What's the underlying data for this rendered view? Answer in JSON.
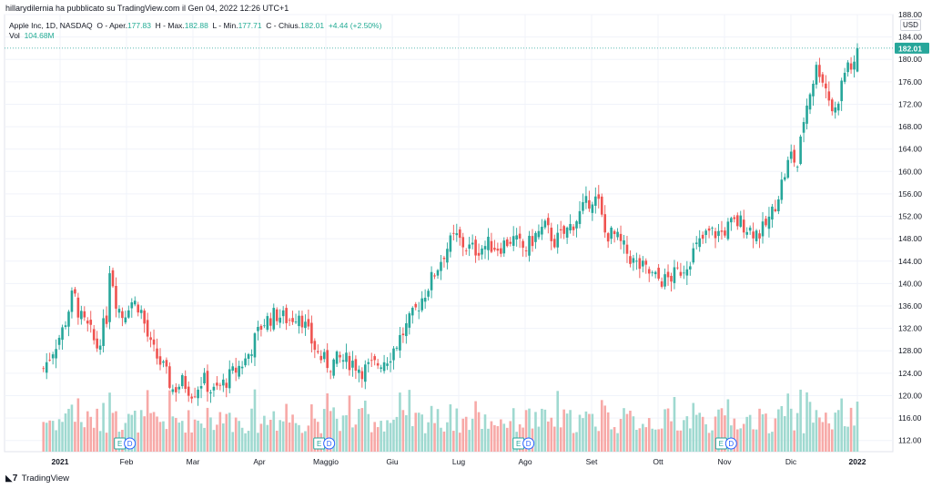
{
  "header": {
    "published_by": "hillarydilernia ha pubblicato su TradingView.com il Gen 04, 2022 12:26 UTC+1"
  },
  "legend": {
    "symbol": "Apple Inc, 1D, NASDAQ",
    "open_label": "O - Aper.",
    "open_value": "177.83",
    "high_label": "H - Max.",
    "high_value": "182.88",
    "low_label": "L - Min.",
    "low_value": "177.71",
    "close_label": "C - Chius.",
    "close_value": "182.01",
    "change": "+4.44 (+2.50%)",
    "vol_label": "Vol",
    "vol_value": "104.68M"
  },
  "footer": {
    "brand": "TradingView"
  },
  "colors": {
    "up": "#26a69a",
    "down": "#ef5350",
    "vol_up": "#9fd9d0",
    "vol_down": "#f7a9a7",
    "grid": "#f0f3fa",
    "accent": "#2962ff"
  },
  "chart_data": {
    "type": "candlestick",
    "title": "Apple Inc, 1D, NASDAQ",
    "currency": "USD",
    "ylim": [
      110,
      188
    ],
    "y_ticks": [
      "112.00",
      "116.00",
      "120.00",
      "124.00",
      "128.00",
      "132.00",
      "136.00",
      "140.00",
      "144.00",
      "148.00",
      "152.00",
      "156.00",
      "160.00",
      "164.00",
      "168.00",
      "172.00",
      "176.00",
      "180.00",
      "184.00",
      "188.00"
    ],
    "x_labels": [
      "2021",
      "Feb",
      "Mar",
      "Apr",
      "Maggio",
      "Giu",
      "Lug",
      "Ago",
      "Set",
      "Ott",
      "Nov",
      "Dic",
      "2022"
    ],
    "x_label_month_index": [
      0,
      1,
      2,
      3,
      4,
      5,
      6,
      7,
      8,
      9,
      10,
      11,
      12
    ],
    "last_price": "182.01",
    "anchors": [
      {
        "m": -0.25,
        "c": 124.8
      },
      {
        "m": 0.05,
        "c": 132.0
      },
      {
        "m": 0.2,
        "c": 138.5
      },
      {
        "m": 0.3,
        "c": 134.0
      },
      {
        "m": 0.45,
        "c": 131.5
      },
      {
        "m": 0.55,
        "c": 128.5
      },
      {
        "m": 0.7,
        "c": 134.0
      },
      {
        "m": 0.75,
        "c": 143.5
      },
      {
        "m": 0.85,
        "c": 136.5
      },
      {
        "m": 0.95,
        "c": 134.0
      },
      {
        "m": 1.05,
        "c": 137.0
      },
      {
        "m": 1.2,
        "c": 136.0
      },
      {
        "m": 1.35,
        "c": 129.0
      },
      {
        "m": 1.55,
        "c": 125.0
      },
      {
        "m": 1.7,
        "c": 121.0
      },
      {
        "m": 1.85,
        "c": 122.5
      },
      {
        "m": 2.0,
        "c": 120.5
      },
      {
        "m": 2.15,
        "c": 123.0
      },
      {
        "m": 2.3,
        "c": 120.5
      },
      {
        "m": 2.45,
        "c": 122.0
      },
      {
        "m": 2.6,
        "c": 124.0
      },
      {
        "m": 2.8,
        "c": 126.5
      },
      {
        "m": 3.05,
        "c": 133.0
      },
      {
        "m": 3.25,
        "c": 134.5
      },
      {
        "m": 3.45,
        "c": 133.5
      },
      {
        "m": 3.6,
        "c": 135.0
      },
      {
        "m": 3.75,
        "c": 130.5
      },
      {
        "m": 3.9,
        "c": 127.0
      },
      {
        "m": 4.05,
        "c": 125.5
      },
      {
        "m": 4.2,
        "c": 126.5
      },
      {
        "m": 4.4,
        "c": 126.0
      },
      {
        "m": 4.55,
        "c": 124.5
      },
      {
        "m": 4.75,
        "c": 125.5
      },
      {
        "m": 4.95,
        "c": 127.0
      },
      {
        "m": 5.1,
        "c": 130.0
      },
      {
        "m": 5.3,
        "c": 134.0
      },
      {
        "m": 5.45,
        "c": 137.5
      },
      {
        "m": 5.6,
        "c": 141.0
      },
      {
        "m": 5.8,
        "c": 146.0
      },
      {
        "m": 5.95,
        "c": 148.5
      },
      {
        "m": 6.1,
        "c": 146.5
      },
      {
        "m": 6.25,
        "c": 146.0
      },
      {
        "m": 6.45,
        "c": 147.0
      },
      {
        "m": 6.6,
        "c": 146.5
      },
      {
        "m": 6.8,
        "c": 148.0
      },
      {
        "m": 7.0,
        "c": 146.0
      },
      {
        "m": 7.15,
        "c": 148.5
      },
      {
        "m": 7.3,
        "c": 150.0
      },
      {
        "m": 7.45,
        "c": 147.5
      },
      {
        "m": 7.6,
        "c": 149.0
      },
      {
        "m": 7.8,
        "c": 152.0
      },
      {
        "m": 8.0,
        "c": 155.5
      },
      {
        "m": 8.1,
        "c": 154.5
      },
      {
        "m": 8.2,
        "c": 149.0
      },
      {
        "m": 8.35,
        "c": 148.5
      },
      {
        "m": 8.5,
        "c": 146.0
      },
      {
        "m": 8.65,
        "c": 143.5
      },
      {
        "m": 8.8,
        "c": 142.5
      },
      {
        "m": 8.95,
        "c": 141.0
      },
      {
        "m": 9.1,
        "c": 140.5
      },
      {
        "m": 9.25,
        "c": 141.5
      },
      {
        "m": 9.4,
        "c": 143.0
      },
      {
        "m": 9.55,
        "c": 146.0
      },
      {
        "m": 9.75,
        "c": 149.0
      },
      {
        "m": 9.95,
        "c": 149.0
      },
      {
        "m": 10.1,
        "c": 150.5
      },
      {
        "m": 10.25,
        "c": 151.0
      },
      {
        "m": 10.4,
        "c": 149.5
      },
      {
        "m": 10.55,
        "c": 149.0
      },
      {
        "m": 10.7,
        "c": 152.0
      },
      {
        "m": 10.85,
        "c": 157.5
      },
      {
        "m": 11.0,
        "c": 163.0
      },
      {
        "m": 11.1,
        "c": 161.0
      },
      {
        "m": 11.2,
        "c": 170.0
      },
      {
        "m": 11.3,
        "c": 175.0
      },
      {
        "m": 11.4,
        "c": 179.0
      },
      {
        "m": 11.5,
        "c": 176.0
      },
      {
        "m": 11.6,
        "c": 172.0
      },
      {
        "m": 11.65,
        "c": 170.0
      },
      {
        "m": 11.75,
        "c": 175.0
      },
      {
        "m": 11.85,
        "c": 179.5
      },
      {
        "m": 11.95,
        "c": 178.0
      },
      {
        "m": 12.0,
        "c": 182.01
      }
    ],
    "events": [
      {
        "label": "E",
        "m": 0.9
      },
      {
        "label": "D",
        "m": 1.05
      },
      {
        "label": "E",
        "m": 3.9
      },
      {
        "label": "D",
        "m": 4.05
      },
      {
        "label": "E",
        "m": 6.9
      },
      {
        "label": "D",
        "m": 7.05
      },
      {
        "label": "E",
        "m": 9.95
      },
      {
        "label": "D",
        "m": 10.1
      }
    ]
  }
}
